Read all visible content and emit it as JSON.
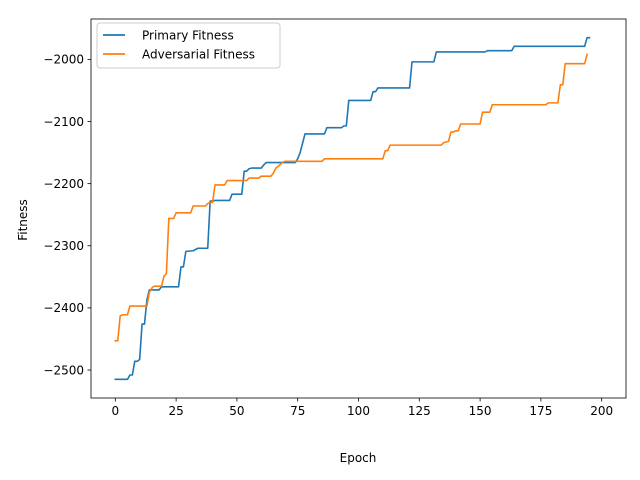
{
  "chart_data": {
    "type": "line",
    "title": "",
    "xlabel": "Epoch",
    "ylabel": "Fitness",
    "xlim": [
      -10,
      210
    ],
    "ylim": [
      -2545,
      -1935
    ],
    "xticks": [
      0,
      25,
      50,
      75,
      100,
      125,
      150,
      175,
      200
    ],
    "yticks": [
      -2500,
      -2400,
      -2300,
      -2200,
      -2100,
      -2000
    ],
    "xtick_labels": [
      "0",
      "25",
      "50",
      "75",
      "100",
      "125",
      "150",
      "175",
      "200"
    ],
    "ytick_labels": [
      "−2500",
      "−2400",
      "−2300",
      "−2200",
      "−2100",
      "−2000"
    ],
    "grid": false,
    "legend_position": "top-left",
    "series": [
      {
        "name": "Primary Fitness",
        "color": "#1f77b4",
        "points": [
          [
            0,
            -2515
          ],
          [
            5,
            -2515
          ],
          [
            6,
            -2508
          ],
          [
            7,
            -2508
          ],
          [
            8,
            -2486
          ],
          [
            9,
            -2486
          ],
          [
            10,
            -2483
          ],
          [
            11,
            -2426
          ],
          [
            12,
            -2426
          ],
          [
            13,
            -2387
          ],
          [
            14,
            -2371
          ],
          [
            18,
            -2371
          ],
          [
            19,
            -2366
          ],
          [
            26,
            -2366
          ],
          [
            27,
            -2334
          ],
          [
            28,
            -2334
          ],
          [
            29,
            -2309
          ],
          [
            32,
            -2308
          ],
          [
            33,
            -2306
          ],
          [
            34,
            -2304
          ],
          [
            38,
            -2304
          ],
          [
            39,
            -2228
          ],
          [
            40,
            -2228
          ],
          [
            41,
            -2227
          ],
          [
            47,
            -2227
          ],
          [
            48,
            -2217
          ],
          [
            52,
            -2217
          ],
          [
            53,
            -2180
          ],
          [
            54,
            -2180
          ],
          [
            55,
            -2176
          ],
          [
            56,
            -2175
          ],
          [
            60,
            -2175
          ],
          [
            61,
            -2170
          ],
          [
            62,
            -2166
          ],
          [
            74,
            -2166
          ],
          [
            75,
            -2160
          ],
          [
            76,
            -2150
          ],
          [
            77,
            -2135
          ],
          [
            78,
            -2120
          ],
          [
            86,
            -2120
          ],
          [
            87,
            -2110
          ],
          [
            93,
            -2110
          ],
          [
            94,
            -2107
          ],
          [
            95,
            -2107
          ],
          [
            96,
            -2066
          ],
          [
            105,
            -2066
          ],
          [
            106,
            -2052
          ],
          [
            107,
            -2052
          ],
          [
            108,
            -2046
          ],
          [
            121,
            -2046
          ],
          [
            122,
            -2004
          ],
          [
            131,
            -2004
          ],
          [
            132,
            -1988
          ],
          [
            152,
            -1988
          ],
          [
            153,
            -1986
          ],
          [
            163,
            -1986
          ],
          [
            164,
            -1979
          ],
          [
            193,
            -1979
          ],
          [
            194,
            -1965
          ],
          [
            195,
            -1965
          ]
        ]
      },
      {
        "name": "Adversarial Fitness",
        "color": "#ff7f0e",
        "points": [
          [
            0,
            -2453
          ],
          [
            1,
            -2453
          ],
          [
            2,
            -2413
          ],
          [
            3,
            -2411
          ],
          [
            5,
            -2411
          ],
          [
            6,
            -2397
          ],
          [
            11,
            -2397
          ],
          [
            12,
            -2397
          ],
          [
            13,
            -2397
          ],
          [
            14,
            -2375
          ],
          [
            15,
            -2368
          ],
          [
            16,
            -2365
          ],
          [
            19,
            -2365
          ],
          [
            20,
            -2349
          ],
          [
            21,
            -2345
          ],
          [
            22,
            -2256
          ],
          [
            24,
            -2256
          ],
          [
            25,
            -2247
          ],
          [
            31,
            -2247
          ],
          [
            32,
            -2236
          ],
          [
            37,
            -2236
          ],
          [
            38,
            -2232
          ],
          [
            39,
            -2230
          ],
          [
            40,
            -2230
          ],
          [
            41,
            -2202
          ],
          [
            45,
            -2202
          ],
          [
            46,
            -2195
          ],
          [
            54,
            -2195
          ],
          [
            55,
            -2191
          ],
          [
            59,
            -2191
          ],
          [
            60,
            -2188
          ],
          [
            64,
            -2188
          ],
          [
            65,
            -2183
          ],
          [
            66,
            -2175
          ],
          [
            67,
            -2172
          ],
          [
            69,
            -2165
          ],
          [
            70,
            -2164
          ],
          [
            85,
            -2164
          ],
          [
            86,
            -2160
          ],
          [
            110,
            -2160
          ],
          [
            111,
            -2147
          ],
          [
            112,
            -2147
          ],
          [
            113,
            -2138
          ],
          [
            134,
            -2138
          ],
          [
            135,
            -2134
          ],
          [
            137,
            -2132
          ],
          [
            138,
            -2117
          ],
          [
            139,
            -2117
          ],
          [
            140,
            -2115
          ],
          [
            141,
            -2115
          ],
          [
            142,
            -2104
          ],
          [
            150,
            -2104
          ],
          [
            151,
            -2085
          ],
          [
            154,
            -2085
          ],
          [
            155,
            -2073
          ],
          [
            177,
            -2073
          ],
          [
            178,
            -2070
          ],
          [
            182,
            -2070
          ],
          [
            183,
            -2041
          ],
          [
            184,
            -2041
          ],
          [
            185,
            -2007
          ],
          [
            193,
            -2007
          ],
          [
            194,
            -1992
          ]
        ]
      }
    ]
  }
}
